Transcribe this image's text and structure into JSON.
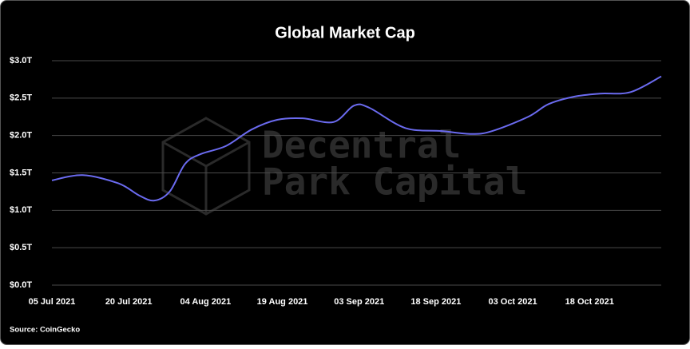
{
  "chart_data": {
    "type": "line",
    "title": "Global Market Cap",
    "source": "Source: CoinGecko",
    "watermark": [
      "Decentral",
      "Park Capital"
    ],
    "x": [
      "2021-07-05",
      "2021-07-11",
      "2021-07-18",
      "2021-07-22",
      "2021-07-25",
      "2021-07-28",
      "2021-07-31",
      "2021-08-03",
      "2021-08-08",
      "2021-08-13",
      "2021-08-18",
      "2021-08-23",
      "2021-08-29",
      "2021-09-02",
      "2021-09-05",
      "2021-09-12",
      "2021-09-19",
      "2021-09-25",
      "2021-09-29",
      "2021-10-06",
      "2021-10-10",
      "2021-10-15",
      "2021-10-20",
      "2021-10-26",
      "2021-11-01"
    ],
    "series": [
      {
        "name": "Global Market Cap",
        "color": "#6b6bf0",
        "values": [
          1.4,
          1.47,
          1.36,
          1.2,
          1.13,
          1.25,
          1.62,
          1.75,
          1.86,
          2.08,
          2.21,
          2.23,
          2.18,
          2.4,
          2.37,
          2.1,
          2.06,
          2.02,
          2.06,
          2.25,
          2.42,
          2.52,
          2.56,
          2.58,
          2.79
        ]
      }
    ],
    "xlim": [
      "2021-07-05",
      "2021-11-01"
    ],
    "xticks": [
      {
        "value": "2021-07-05",
        "label": "05 Jul 2021"
      },
      {
        "value": "2021-07-20",
        "label": "20 Jul 2021"
      },
      {
        "value": "2021-08-04",
        "label": "04 Aug 2021"
      },
      {
        "value": "2021-08-19",
        "label": "19 Aug 2021"
      },
      {
        "value": "2021-09-03",
        "label": "03 Sep 2021"
      },
      {
        "value": "2021-09-18",
        "label": "18 Sep 2021"
      },
      {
        "value": "2021-10-03",
        "label": "03 Oct 2021"
      },
      {
        "value": "2021-10-18",
        "label": "18 Oct 2021"
      }
    ],
    "ylim": [
      0,
      3
    ],
    "yticks": [
      {
        "value": 0,
        "label": "$0.0T"
      },
      {
        "value": 0.5,
        "label": "$0.5T"
      },
      {
        "value": 1,
        "label": "$1.0T"
      },
      {
        "value": 1.5,
        "label": "$1.5T"
      },
      {
        "value": 2,
        "label": "$2.0T"
      },
      {
        "value": 2.5,
        "label": "$2.5T"
      },
      {
        "value": 3,
        "label": "$3.0T"
      }
    ],
    "grid": true
  }
}
